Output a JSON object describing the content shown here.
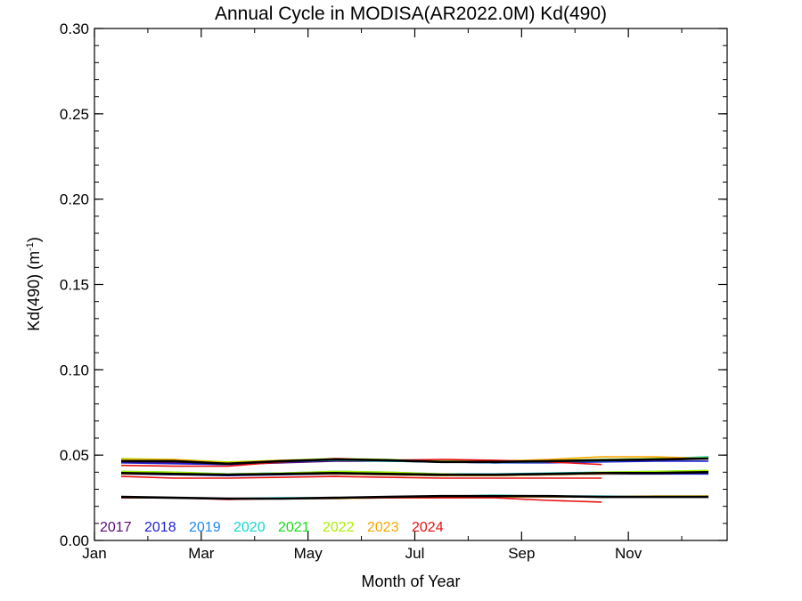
{
  "chart_data": {
    "type": "line",
    "title": "Annual Cycle in MODISA(AR2022.0M) Kd(490)",
    "xlabel": "Month of Year",
    "ylabel": "Kd(490) (m",
    "ylabel_sup": "-1",
    "ylabel_end": ")",
    "xlim": [
      1,
      12.85
    ],
    "ylim": [
      0,
      0.3
    ],
    "yticks": [
      0.0,
      0.05,
      0.1,
      0.15,
      0.2,
      0.25,
      0.3
    ],
    "ytick_labels": [
      "0.00",
      "0.05",
      "0.10",
      "0.15",
      "0.20",
      "0.25",
      "0.30"
    ],
    "xticks": [
      1,
      3,
      5,
      7,
      9,
      11
    ],
    "xtick_labels": [
      "Jan",
      "Mar",
      "May",
      "Jul",
      "Sep",
      "Nov"
    ],
    "grid": false,
    "legend_placement": "bottom-left",
    "months": [
      1.5,
      2.5,
      3.5,
      4.5,
      5.5,
      6.5,
      7.5,
      8.5,
      9.5,
      10.5,
      11.5,
      12.5
    ],
    "series": [
      {
        "name": "2017",
        "color": "#5a0a78",
        "group": "upper",
        "values": [
          0.046,
          0.0455,
          0.0445,
          0.0455,
          0.0465,
          0.0465,
          0.046,
          0.0455,
          0.046,
          0.0465,
          0.047,
          0.048
        ]
      },
      {
        "name": "2018",
        "color": "#2020d0",
        "group": "upper",
        "values": [
          0.0455,
          0.045,
          0.0445,
          0.046,
          0.047,
          0.0465,
          0.046,
          0.0455,
          0.0455,
          0.046,
          0.0465,
          0.0465
        ]
      },
      {
        "name": "2019",
        "color": "#1e88f0",
        "group": "upper",
        "values": [
          0.047,
          0.0465,
          0.045,
          0.046,
          0.0475,
          0.047,
          0.046,
          0.0455,
          0.046,
          0.0465,
          0.0475,
          0.049
        ]
      },
      {
        "name": "2020",
        "color": "#10d8d0",
        "group": "upper",
        "values": [
          0.047,
          0.0465,
          0.0455,
          0.0465,
          0.047,
          0.0465,
          0.046,
          0.046,
          0.0465,
          0.0475,
          0.048,
          0.049
        ]
      },
      {
        "name": "2021",
        "color": "#10e010",
        "group": "upper",
        "values": [
          0.0475,
          0.047,
          0.0455,
          0.047,
          0.0475,
          0.047,
          0.0465,
          0.046,
          0.0465,
          0.047,
          0.0475,
          0.0485
        ]
      },
      {
        "name": "2022",
        "color": "#a8f000",
        "group": "upper",
        "values": [
          0.048,
          0.0475,
          0.046,
          0.047,
          0.048,
          0.0475,
          0.0465,
          0.0465,
          0.047,
          0.0475,
          0.048,
          0.0485
        ]
      },
      {
        "name": "2023",
        "color": "#f8a800",
        "group": "upper",
        "values": [
          0.0475,
          0.0475,
          0.0455,
          0.047,
          0.0475,
          0.047,
          0.046,
          0.0465,
          0.0475,
          0.049,
          0.049,
          0.048
        ]
      },
      {
        "name": "2024",
        "color": "#e81010",
        "group": "upper",
        "values": [
          0.044,
          0.0435,
          0.0435,
          0.046,
          0.048,
          0.047,
          0.0475,
          0.047,
          0.046,
          0.0445
        ]
      },
      {
        "name": "2017",
        "color": "#5a0a78",
        "group": "middle",
        "values": [
          0.0395,
          0.0385,
          0.0385,
          0.039,
          0.0395,
          0.039,
          0.0385,
          0.0385,
          0.039,
          0.039,
          0.0395,
          0.0395
        ]
      },
      {
        "name": "2018",
        "color": "#2020d0",
        "group": "middle",
        "values": [
          0.039,
          0.0385,
          0.038,
          0.0385,
          0.039,
          0.0385,
          0.038,
          0.038,
          0.0385,
          0.039,
          0.039,
          0.039
        ]
      },
      {
        "name": "2019",
        "color": "#1e88f0",
        "group": "middle",
        "values": [
          0.04,
          0.0395,
          0.039,
          0.0395,
          0.04,
          0.0395,
          0.0385,
          0.0385,
          0.039,
          0.0395,
          0.04,
          0.0405
        ]
      },
      {
        "name": "2020",
        "color": "#10d8d0",
        "group": "middle",
        "values": [
          0.0405,
          0.04,
          0.039,
          0.0395,
          0.0405,
          0.04,
          0.039,
          0.039,
          0.0395,
          0.04,
          0.0405,
          0.041
        ]
      },
      {
        "name": "2021",
        "color": "#10e010",
        "group": "middle",
        "values": [
          0.04,
          0.0395,
          0.0385,
          0.039,
          0.04,
          0.0395,
          0.0385,
          0.0385,
          0.039,
          0.0395,
          0.04,
          0.041
        ]
      },
      {
        "name": "2022",
        "color": "#a8f000",
        "group": "middle",
        "values": [
          0.0405,
          0.04,
          0.039,
          0.0395,
          0.0405,
          0.04,
          0.039,
          0.0385,
          0.039,
          0.04,
          0.0405,
          0.041
        ]
      },
      {
        "name": "2023",
        "color": "#f8a800",
        "group": "middle",
        "values": [
          0.039,
          0.039,
          0.0385,
          0.039,
          0.039,
          0.0385,
          0.038,
          0.038,
          0.0385,
          0.039,
          0.0395,
          0.04
        ]
      },
      {
        "name": "2024",
        "color": "#e81010",
        "group": "middle",
        "values": [
          0.0375,
          0.0365,
          0.0365,
          0.037,
          0.0375,
          0.037,
          0.0365,
          0.0365,
          0.0365,
          0.0365
        ]
      },
      {
        "name": "2017",
        "color": "#5a0a78",
        "group": "lower",
        "values": [
          0.0255,
          0.025,
          0.0245,
          0.0245,
          0.025,
          0.0255,
          0.026,
          0.026,
          0.026,
          0.0255,
          0.0255,
          0.0255
        ]
      },
      {
        "name": "2018",
        "color": "#2020d0",
        "group": "lower",
        "values": [
          0.025,
          0.025,
          0.0245,
          0.0245,
          0.0245,
          0.025,
          0.0255,
          0.026,
          0.0255,
          0.0255,
          0.0255,
          0.0255
        ]
      },
      {
        "name": "2019",
        "color": "#1e88f0",
        "group": "lower",
        "values": [
          0.0255,
          0.025,
          0.0245,
          0.0245,
          0.025,
          0.0255,
          0.026,
          0.026,
          0.026,
          0.0255,
          0.0255,
          0.0255
        ]
      },
      {
        "name": "2020",
        "color": "#10d8d0",
        "group": "lower",
        "values": [
          0.0255,
          0.025,
          0.0245,
          0.025,
          0.025,
          0.0255,
          0.026,
          0.0265,
          0.026,
          0.026,
          0.0255,
          0.0255
        ]
      },
      {
        "name": "2021",
        "color": "#10e010",
        "group": "lower",
        "values": [
          0.025,
          0.025,
          0.0245,
          0.0245,
          0.025,
          0.0255,
          0.026,
          0.026,
          0.026,
          0.0255,
          0.0255,
          0.026
        ]
      },
      {
        "name": "2022",
        "color": "#a8f000",
        "group": "lower",
        "values": [
          0.0255,
          0.025,
          0.0245,
          0.0245,
          0.025,
          0.0255,
          0.0255,
          0.026,
          0.026,
          0.0255,
          0.026,
          0.026
        ]
      },
      {
        "name": "2023",
        "color": "#f8a800",
        "group": "lower",
        "values": [
          0.0255,
          0.025,
          0.0245,
          0.0245,
          0.0245,
          0.025,
          0.025,
          0.0255,
          0.0255,
          0.0255,
          0.026,
          0.026
        ]
      },
      {
        "name": "2024",
        "color": "#e81010",
        "group": "lower",
        "values": [
          0.025,
          0.025,
          0.024,
          0.0245,
          0.025,
          0.025,
          0.025,
          0.025,
          0.0235,
          0.0225
        ]
      },
      {
        "name": "",
        "color": "#000000",
        "group": "upper",
        "role": "climatology",
        "values": [
          0.0465,
          0.0465,
          0.045,
          0.0465,
          0.0475,
          0.047,
          0.046,
          0.046,
          0.0465,
          0.047,
          0.0475,
          0.048
        ]
      },
      {
        "name": "",
        "color": "#000000",
        "group": "middle",
        "role": "climatology",
        "values": [
          0.0395,
          0.039,
          0.0385,
          0.039,
          0.0395,
          0.039,
          0.0385,
          0.0385,
          0.039,
          0.0395,
          0.0395,
          0.04
        ]
      },
      {
        "name": "",
        "color": "#000000",
        "group": "lower",
        "role": "climatology",
        "values": [
          0.0255,
          0.025,
          0.0245,
          0.0245,
          0.025,
          0.0255,
          0.026,
          0.026,
          0.026,
          0.0255,
          0.0255,
          0.0255
        ]
      }
    ],
    "legend": [
      {
        "label": "2017",
        "color": "#5a0a78"
      },
      {
        "label": "2018",
        "color": "#2020d0"
      },
      {
        "label": "2019",
        "color": "#1e88f0"
      },
      {
        "label": "2020",
        "color": "#10d8d0"
      },
      {
        "label": "2021",
        "color": "#10e010"
      },
      {
        "label": "2022",
        "color": "#a8f000"
      },
      {
        "label": "2023",
        "color": "#f8a800"
      },
      {
        "label": "2024",
        "color": "#e81010"
      }
    ]
  }
}
